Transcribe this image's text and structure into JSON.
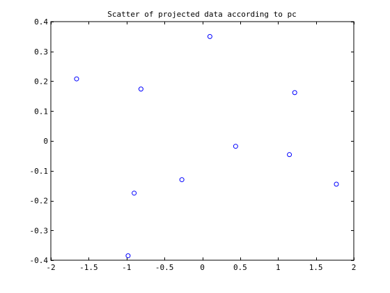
{
  "chart_data": {
    "type": "scatter",
    "title": "Scatter of projected data according to pc",
    "xlabel": "",
    "ylabel": "",
    "xlim": [
      -2,
      2
    ],
    "ylim": [
      -0.4,
      0.4
    ],
    "xticks": [
      -2,
      -1.5,
      -1,
      -0.5,
      0,
      0.5,
      1,
      1.5,
      2
    ],
    "xtick_labels": [
      "-2",
      "-1.5",
      "-1",
      "-0.5",
      "0",
      "0.5",
      "1",
      "1.5",
      "2"
    ],
    "yticks": [
      -0.4,
      -0.3,
      -0.2,
      -0.1,
      0,
      0.1,
      0.2,
      0.3,
      0.4
    ],
    "ytick_labels": [
      "-0.4",
      "-0.3",
      "-0.2",
      "-0.1",
      "0",
      "0.1",
      "0.2",
      "0.3",
      "0.4"
    ],
    "grid": false,
    "marker": "circle-open",
    "marker_color": "#0000ff",
    "series": [
      {
        "x": [
          -1.66,
          -0.81,
          0.1,
          1.22,
          -0.9,
          -0.27,
          0.44,
          1.15,
          1.77,
          -0.98
        ],
        "y": [
          0.208,
          0.174,
          0.35,
          0.162,
          -0.175,
          -0.13,
          -0.018,
          -0.046,
          -0.145,
          -0.385
        ]
      }
    ]
  }
}
